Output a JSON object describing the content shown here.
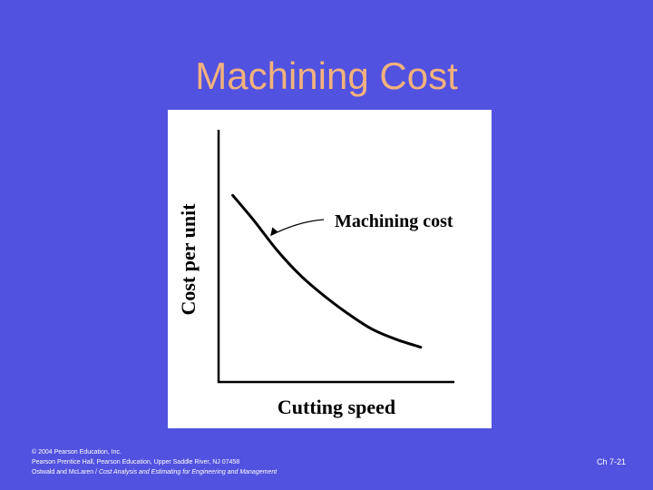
{
  "slide": {
    "title": "Machining Cost",
    "slide_number": "Ch 7-21"
  },
  "footer": {
    "line1": "© 2004 Pearson Education, Inc.",
    "line2": "Pearson Prentice Hall, Pearson Education, Upper Saddle River, NJ 07458",
    "line3_prefix": "Ostwald and McLaren / ",
    "line3_italic": "Cost Analysis and Estimating for Engineering and Management"
  },
  "colors": {
    "background": "#5252e0",
    "title": "#f2b27c",
    "panel": "#ffffff",
    "ink": "#000000"
  },
  "chart_data": {
    "type": "line",
    "title": "",
    "xlabel": "Cutting speed",
    "ylabel": "Cost per unit",
    "xlim": [
      0,
      1
    ],
    "ylim": [
      0,
      1
    ],
    "grid": false,
    "tick_labels_shown": false,
    "series": [
      {
        "name": "Machining cost",
        "x": [
          0.06,
          0.15,
          0.25,
          0.35,
          0.45,
          0.55,
          0.65,
          0.75,
          0.85,
          0.85
        ],
        "y": [
          0.74,
          0.64,
          0.52,
          0.42,
          0.34,
          0.27,
          0.21,
          0.17,
          0.14,
          0.14
        ]
      }
    ],
    "annotations": [
      {
        "text": "Machining cost",
        "points_to_series": "Machining cost"
      }
    ]
  }
}
